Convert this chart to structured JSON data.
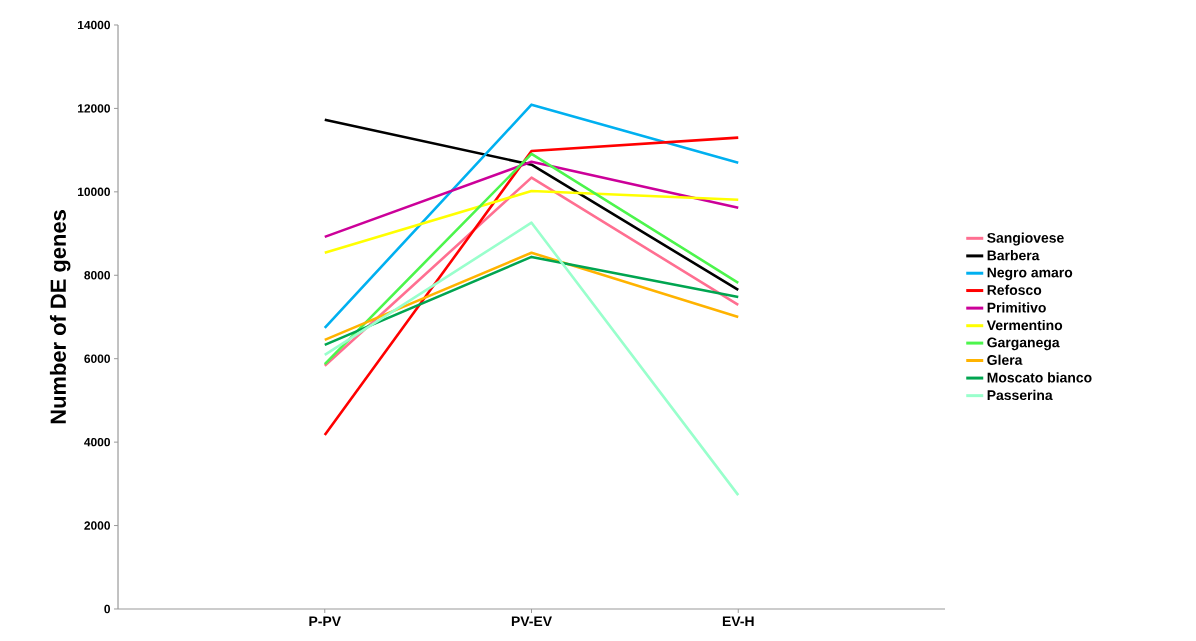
{
  "chart_data": {
    "type": "line",
    "ylabel": "Number of DE genes",
    "categories": [
      "P-PV",
      "PV-EV",
      "EV-H"
    ],
    "series": [
      {
        "name": "Sangiovese",
        "color": "#ff6f91",
        "values": [
          5830,
          10340,
          7290
        ]
      },
      {
        "name": "Barbera",
        "color": "#000000",
        "values": [
          11730,
          10650,
          7650
        ]
      },
      {
        "name": "Negro amaro",
        "color": "#00b0f0",
        "values": [
          6740,
          12090,
          10700
        ]
      },
      {
        "name": "Refosco",
        "color": "#ff0000",
        "values": [
          4170,
          10980,
          11300
        ]
      },
      {
        "name": "Primitivo",
        "color": "#cc0099",
        "values": [
          8920,
          10720,
          9620
        ]
      },
      {
        "name": "Vermentino",
        "color": "#ffff00",
        "values": [
          8540,
          10020,
          9810
        ]
      },
      {
        "name": "Garganega",
        "color": "#4cf54c",
        "values": [
          5870,
          10910,
          7820
        ]
      },
      {
        "name": "Glera",
        "color": "#ffb300",
        "values": [
          6450,
          8540,
          7000
        ]
      },
      {
        "name": "Moscato bianco",
        "color": "#00a550",
        "values": [
          6330,
          8440,
          7480
        ]
      },
      {
        "name": "Passerina",
        "color": "#99ffcc",
        "values": [
          6090,
          9260,
          2730
        ]
      }
    ],
    "ylim": [
      0,
      14000
    ],
    "yticks": [
      0,
      2000,
      4000,
      6000,
      8000,
      10000,
      12000,
      14000
    ],
    "grid": false,
    "legend": "right",
    "marker": "none",
    "line_style": "solid"
  }
}
